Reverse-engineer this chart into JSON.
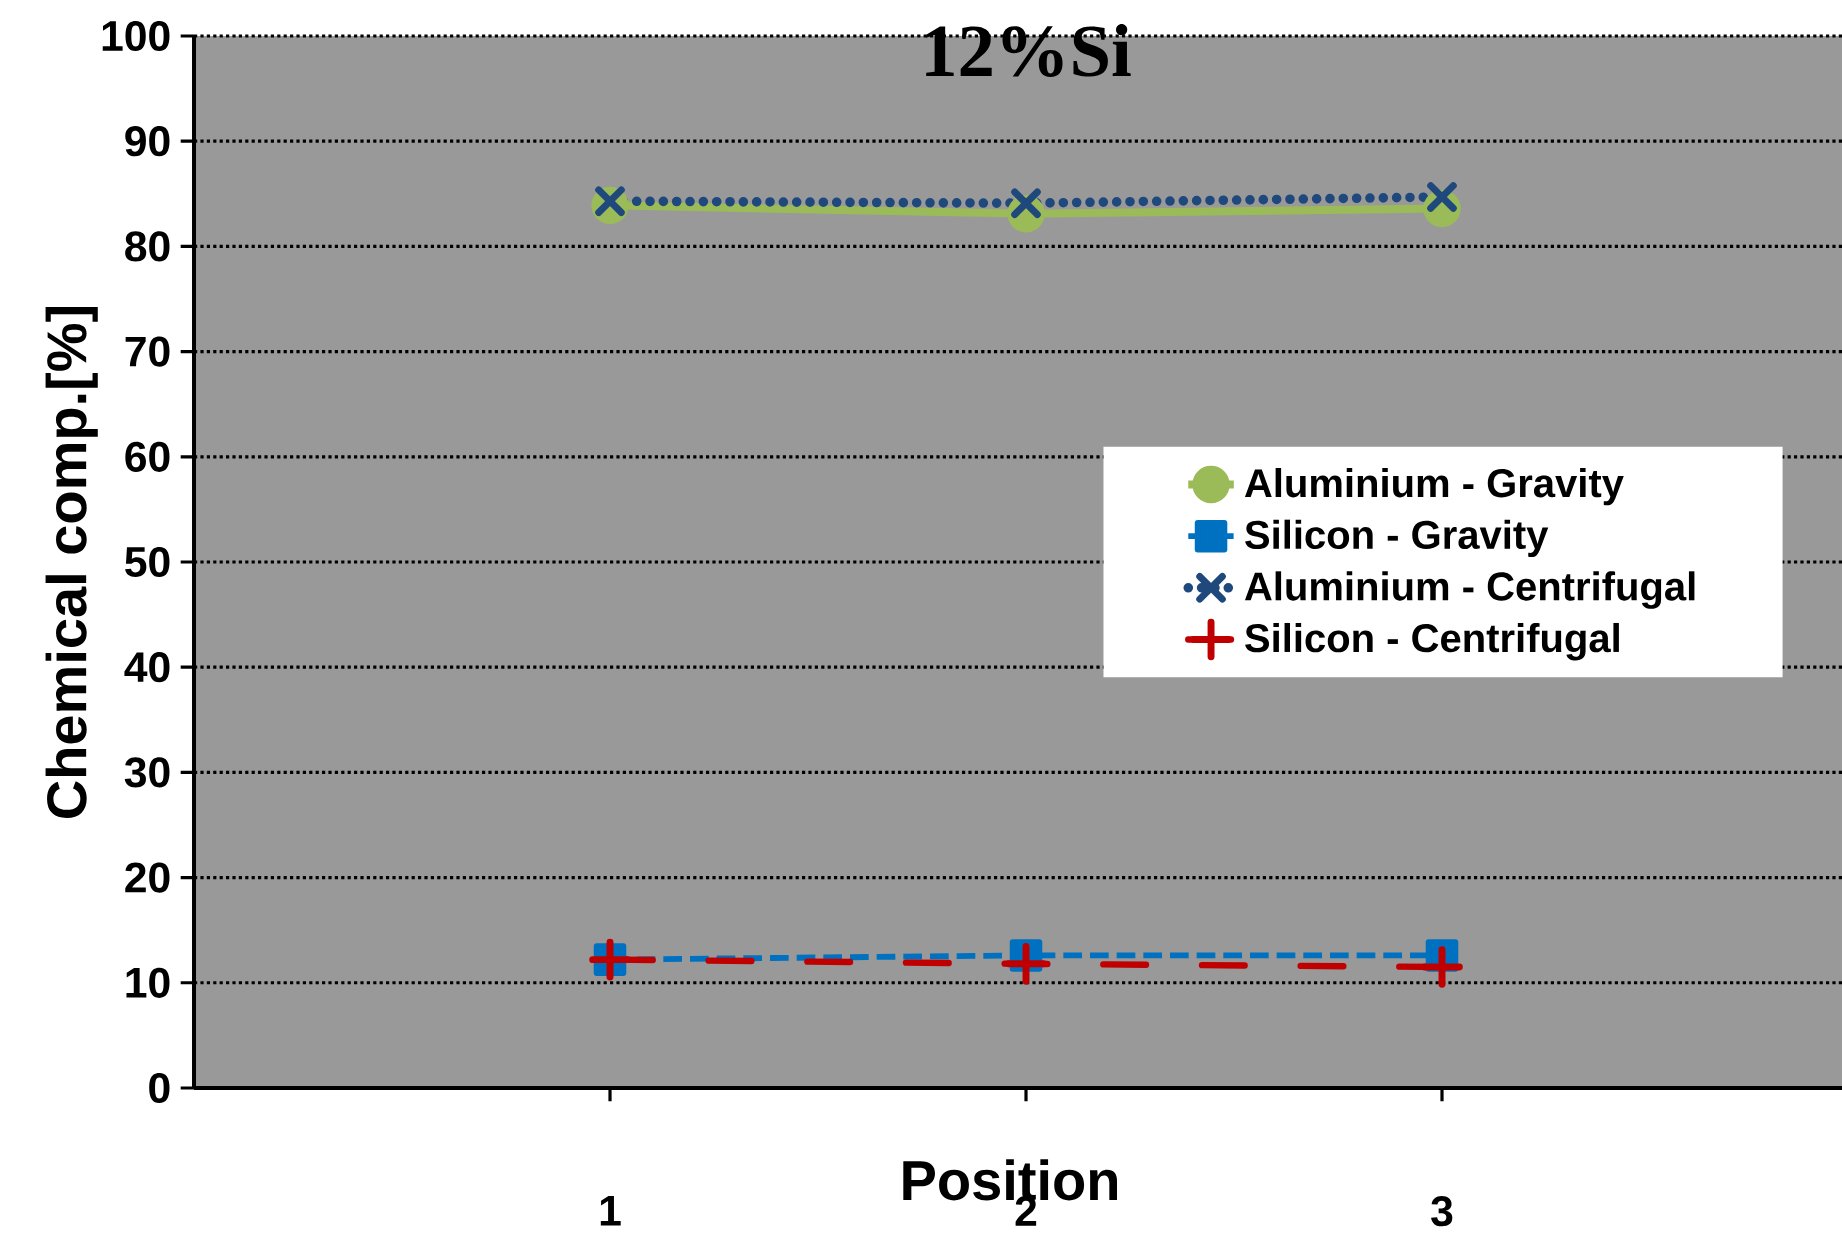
{
  "chart_data": {
    "type": "line",
    "title": "12%Si",
    "xlabel": "Position",
    "ylabel": "Chemical comp.[%]",
    "x": [
      1,
      2,
      3
    ],
    "xlim": [
      0,
      4
    ],
    "xticks": [
      1,
      2,
      3
    ],
    "ylim": [
      0,
      100
    ],
    "yticks": [
      0,
      10,
      20,
      30,
      40,
      50,
      60,
      70,
      80,
      90,
      100
    ],
    "grid": "y",
    "legend": "right",
    "series": [
      {
        "name": "Aluminium - Gravity",
        "color": "#9bbb59",
        "marker": "circle",
        "line_style": "solid",
        "values": [
          83.9,
          83.1,
          83.6
        ]
      },
      {
        "name": "Silicon - Gravity",
        "color": "#0070c0",
        "marker": "square",
        "line_style": "dashed",
        "values": [
          12.2,
          12.6,
          12.6
        ]
      },
      {
        "name": "Aluminium - Centrifugal",
        "color": "#1f497d",
        "marker": "cross",
        "line_style": "dotted",
        "values": [
          84.3,
          84.1,
          84.7
        ]
      },
      {
        "name": "Silicon - Centrifugal",
        "color": "#c00000",
        "marker": "plus",
        "line_style": "dashdotted",
        "values": [
          12.2,
          11.8,
          11.5
        ]
      }
    ]
  }
}
